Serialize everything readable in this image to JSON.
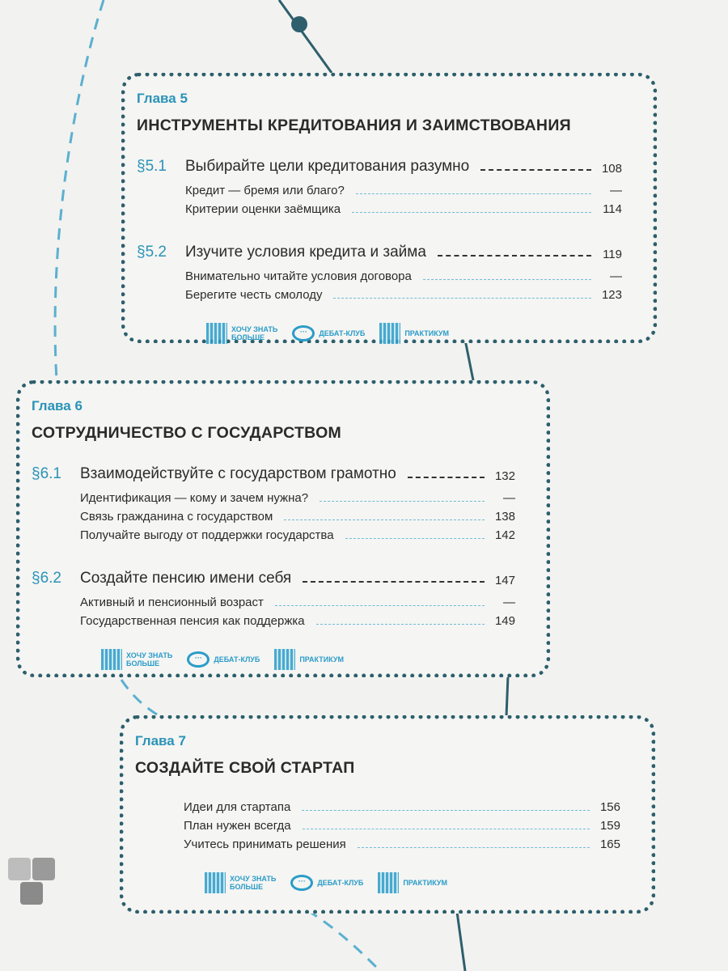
{
  "colors": {
    "accent": "#2a93b8",
    "border": "#2d5f6c",
    "leader": "#6fbcd6"
  },
  "icons_labels": {
    "more": [
      "ХОЧУ ЗНАТЬ",
      "БОЛЬШЕ"
    ],
    "debate": "ДЕБАТ-КЛУБ",
    "practice": "ПРАКТИКУМ",
    "icon_names": [
      "qr-code-icon",
      "speech-bubble-icon",
      "hand-pointer-qr-icon"
    ]
  },
  "chapters": [
    {
      "label": "Глава 5",
      "title": "ИНСТРУМЕНТЫ КРЕДИТОВАНИЯ И ЗАИМСТВОВАНИЯ",
      "sections": [
        {
          "num": "§5.1",
          "title": "Выбирайте цели кредитования разумно",
          "page": "108",
          "subs": [
            {
              "title": "Кредит — бремя или благо?",
              "page": "—"
            },
            {
              "title": "Критерии оценки заёмщика",
              "page": "114"
            }
          ]
        },
        {
          "num": "§5.2",
          "title": "Изучите условия кредита и займа",
          "page": "119",
          "subs": [
            {
              "title": "Внимательно читайте условия договора",
              "page": "—"
            },
            {
              "title": "Берегите честь смолоду",
              "page": "123"
            }
          ]
        }
      ]
    },
    {
      "label": "Глава 6",
      "title": "СОТРУДНИЧЕСТВО С ГОСУДАРСТВОМ",
      "sections": [
        {
          "num": "§6.1",
          "title": "Взаимодействуйте с государством грамотно",
          "page": "132",
          "subs": [
            {
              "title": "Идентификация — кому и зачем нужна?",
              "page": "—"
            },
            {
              "title": "Связь гражданина с государством",
              "page": "138"
            },
            {
              "title": "Получайте выгоду от поддержки государства",
              "page": "142"
            }
          ]
        },
        {
          "num": "§6.2",
          "title": "Создайте пенсию имени себя",
          "page": "147",
          "subs": [
            {
              "title": "Активный и пенсионный возраст",
              "page": "—"
            },
            {
              "title": "Государственная пенсия как поддержка",
              "page": "149"
            }
          ]
        }
      ]
    },
    {
      "label": "Глава 7",
      "title": "СОЗДАЙТЕ СВОЙ СТАРТАП",
      "sections": [
        {
          "num": "",
          "title": "",
          "page": "",
          "subs": [
            {
              "title": "Идеи для стартапа",
              "page": "156"
            },
            {
              "title": "План нужен всегда",
              "page": "159"
            },
            {
              "title": "Учитесь принимать решения",
              "page": "165"
            }
          ]
        }
      ]
    }
  ]
}
